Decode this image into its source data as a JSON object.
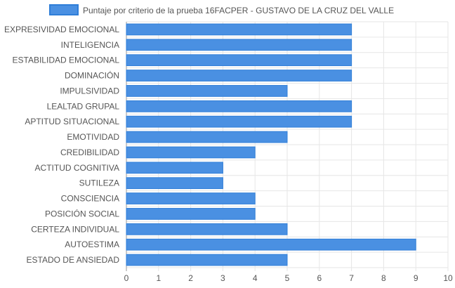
{
  "chart_data": {
    "type": "bar",
    "orientation": "horizontal",
    "categories": [
      "EXPRESIVIDAD EMOCIONAL",
      "INTELIGENCIA",
      "ESTABILIDAD EMOCIONAL",
      "DOMINACIÓN",
      "IMPULSIVIDAD",
      "LEALTAD GRUPAL",
      "APTITUD SITUACIONAL",
      "EMOTIVIDAD",
      "CREDIBILIDAD",
      "ACTITUD COGNITIVA",
      "SUTILEZA",
      "CONSCIENCIA",
      "POSICIÓN SOCIAL",
      "CERTEZA INDIVIDUAL",
      "AUTOESTIMA",
      "ESTADO DE ANSIEDAD"
    ],
    "series": [
      {
        "name": "Puntaje por criterio de la prueba 16FACPER - GUSTAVO DE LA CRUZ DEL VALLE",
        "values": [
          7,
          7,
          7,
          7,
          5,
          7,
          7,
          5,
          4,
          3,
          3,
          4,
          4,
          5,
          9,
          5
        ],
        "color": "#4a90e2"
      }
    ],
    "xlim": [
      0,
      10
    ],
    "xticks": [
      "0",
      "1",
      "2",
      "3",
      "4",
      "5",
      "6",
      "7",
      "8",
      "9",
      "10"
    ],
    "grid": true,
    "legend_position": "top"
  },
  "colors": {
    "bar_fill": "#4a90e2",
    "bar_stroke": "#2f7ed8",
    "grid": "#e6e6e6",
    "axis": "#999999",
    "text": "#555555"
  }
}
